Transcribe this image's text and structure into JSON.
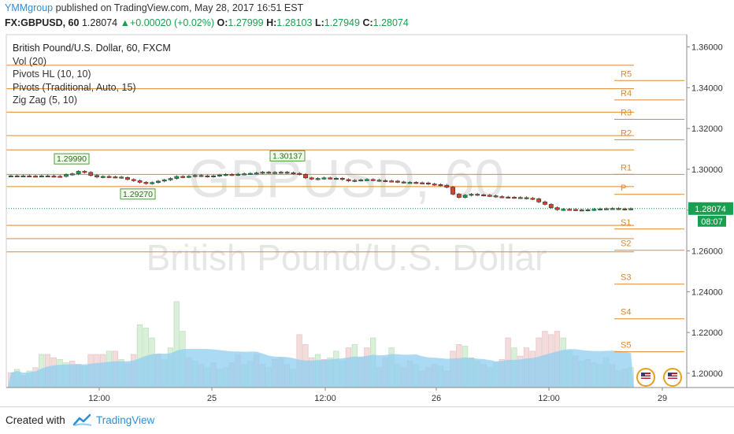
{
  "header": {
    "publisher": "YMMgroup",
    "published_text": "published on TradingView.com, May 28, 2017 16:51 EST",
    "symbol": "FX:GBPUSD, 60",
    "last": "1.28074",
    "change": "+0.00020 (+0.02%)",
    "o_label": "O:",
    "o": "1.27999",
    "h_label": "H:",
    "h": "1.28103",
    "l_label": "L:",
    "l": "1.27949",
    "c_label": "C:",
    "c": "1.28074"
  },
  "legend": {
    "title": "British Pound/U.S. Dollar, 60, FXCM",
    "items": [
      "Vol (20)",
      "Pivots HL (10, 10)",
      "Pivots (Traditional, Auto, 15)",
      "Zig Zag (5, 10)"
    ]
  },
  "watermark": {
    "symbol": "GBPUSD, 60",
    "name": "British Pound/U.S. Dollar"
  },
  "colors": {
    "up": "#1a9e4f",
    "down": "#d5432c",
    "pivot": "#e0882a",
    "volume": "#8fcdf2",
    "accent": "#2c8fd6"
  },
  "chart_data": {
    "type": "candlestick",
    "y_axis_labels": [
      "1.36000",
      "1.34000",
      "1.32000",
      "1.30000",
      "1.28000",
      "1.26000",
      "1.24000",
      "1.22000",
      "1.20000"
    ],
    "ylim": [
      1.193,
      1.366
    ],
    "x_axis_labels": [
      "12:00",
      "25",
      "12:00",
      "26",
      "12:00",
      "29"
    ],
    "last_price_label": "1.28074",
    "countdown_label": "08:07",
    "pivot_levels": [
      {
        "name": "R5",
        "value": 1.3435
      },
      {
        "name": "R4",
        "value": 1.334
      },
      {
        "name": "R3",
        "value": 1.3245
      },
      {
        "name": "R2",
        "value": 1.3145
      },
      {
        "name": "R1",
        "value": 1.2975
      },
      {
        "name": "P",
        "value": 1.2877
      },
      {
        "name": "S1",
        "value": 1.2707
      },
      {
        "name": "S2",
        "value": 1.2603
      },
      {
        "name": "S3",
        "value": 1.2437
      },
      {
        "name": "S4",
        "value": 1.2267
      },
      {
        "name": "S5",
        "value": 1.2105
      }
    ],
    "session_levels": [
      1.351,
      1.3395,
      1.328,
      1.3165,
      1.3095,
      1.2975,
      1.2915,
      1.2725,
      1.266,
      1.2595
    ],
    "pivot_hl_labels": [
      {
        "text": "1.29990",
        "value": 1.2999
      },
      {
        "text": "1.30137",
        "value": 1.30137
      },
      {
        "text": "1.29270",
        "value": 1.2927
      }
    ],
    "closes": [
      1.2968,
      1.2967,
      1.2968,
      1.2967,
      1.2966,
      1.2968,
      1.2967,
      1.2966,
      1.2965,
      1.2974,
      1.2978,
      1.299,
      1.2985,
      1.297,
      1.2962,
      1.2965,
      1.2963,
      1.2962,
      1.296,
      1.295,
      1.2944,
      1.2936,
      1.293,
      1.2935,
      1.2942,
      1.2948,
      1.2955,
      1.2965,
      1.2962,
      1.2966,
      1.297,
      1.2968,
      1.2965,
      1.2968,
      1.2972,
      1.2975,
      1.2973,
      1.2976,
      1.2978,
      1.298,
      1.2982,
      1.2986,
      1.2984,
      1.2985,
      1.2986,
      1.2983,
      1.298,
      1.2975,
      1.2958,
      1.2952,
      1.2955,
      1.2958,
      1.2955,
      1.2956,
      1.295,
      1.2943,
      1.2946,
      1.2948,
      1.295,
      1.2947,
      1.2945,
      1.2943,
      1.2942,
      1.2938,
      1.2936,
      1.2936,
      1.2934,
      1.2933,
      1.2928,
      1.2925,
      1.2922,
      1.2912,
      1.2878,
      1.2862,
      1.2873,
      1.2878,
      1.2875,
      1.2873,
      1.287,
      1.2866,
      1.2864,
      1.2863,
      1.2862,
      1.2861,
      1.2858,
      1.2855,
      1.284,
      1.2828,
      1.2812,
      1.2802,
      1.2804,
      1.2803,
      1.2801,
      1.28,
      1.2802,
      1.2804,
      1.2806,
      1.2807,
      1.2808,
      1.2806,
      1.2804,
      1.2807
    ],
    "volumes": [
      0.45,
      0.55,
      0.35,
      0.5,
      0.6,
      1.0,
      1.0,
      0.9,
      0.85,
      0.75,
      0.8,
      0.7,
      0.65,
      1.0,
      1.0,
      1.0,
      1.1,
      1.1,
      0.85,
      0.7,
      1.0,
      1.9,
      1.8,
      1.5,
      1.0,
      0.85,
      1.2,
      2.6,
      1.7,
      0.9,
      0.8,
      0.7,
      0.6,
      0.75,
      0.55,
      0.6,
      0.75,
      1.0,
      0.7,
      0.8,
      1.0,
      0.7,
      0.6,
      0.85,
      0.9,
      0.7,
      0.55,
      1.6,
      1.3,
      0.9,
      1.0,
      0.85,
      0.9,
      1.1,
      0.8,
      1.2,
      1.3,
      0.9,
      1.2,
      1.5,
      0.6,
      0.9,
      1.2,
      0.7,
      0.6,
      0.8,
      0.7,
      0.5,
      0.6,
      0.7,
      0.65,
      0.5,
      1.1,
      1.3,
      1.25,
      0.9,
      0.8,
      0.7,
      0.6,
      0.75,
      0.85,
      1.5,
      1.2,
      0.95,
      1.2,
      1.1,
      1.5,
      1.7,
      1.6,
      1.7,
      1.5,
      1.1,
      0.95,
      0.8,
      0.85,
      0.75,
      0.7,
      0.9,
      0.7,
      0.5,
      0.55,
      0.6
    ],
    "volume_directions": [
      "d",
      "u",
      "d",
      "u",
      "d",
      "u",
      "d",
      "d",
      "u",
      "u",
      "d",
      "d",
      "u",
      "d",
      "d",
      "d",
      "u",
      "d",
      "u",
      "d",
      "d",
      "u",
      "u",
      "u",
      "d",
      "u",
      "u",
      "u",
      "u",
      "d",
      "u",
      "d",
      "u",
      "d",
      "u",
      "u",
      "d",
      "d",
      "u",
      "u",
      "d",
      "d",
      "u",
      "d",
      "d",
      "d",
      "u",
      "d",
      "d",
      "d",
      "u",
      "d",
      "u",
      "u",
      "u",
      "d",
      "u",
      "d",
      "d",
      "u",
      "d",
      "d",
      "u",
      "u",
      "d",
      "d",
      "u",
      "d",
      "d",
      "d",
      "u",
      "d",
      "d",
      "d",
      "u",
      "u",
      "u",
      "d",
      "u",
      "u",
      "d",
      "d",
      "u",
      "d",
      "d",
      "d",
      "d",
      "d",
      "d",
      "d",
      "u",
      "u",
      "d",
      "u",
      "d",
      "u",
      "u",
      "u",
      "d",
      "u",
      "d",
      "u"
    ]
  },
  "footer": {
    "created_with": "Created with",
    "brand": "TradingView"
  }
}
